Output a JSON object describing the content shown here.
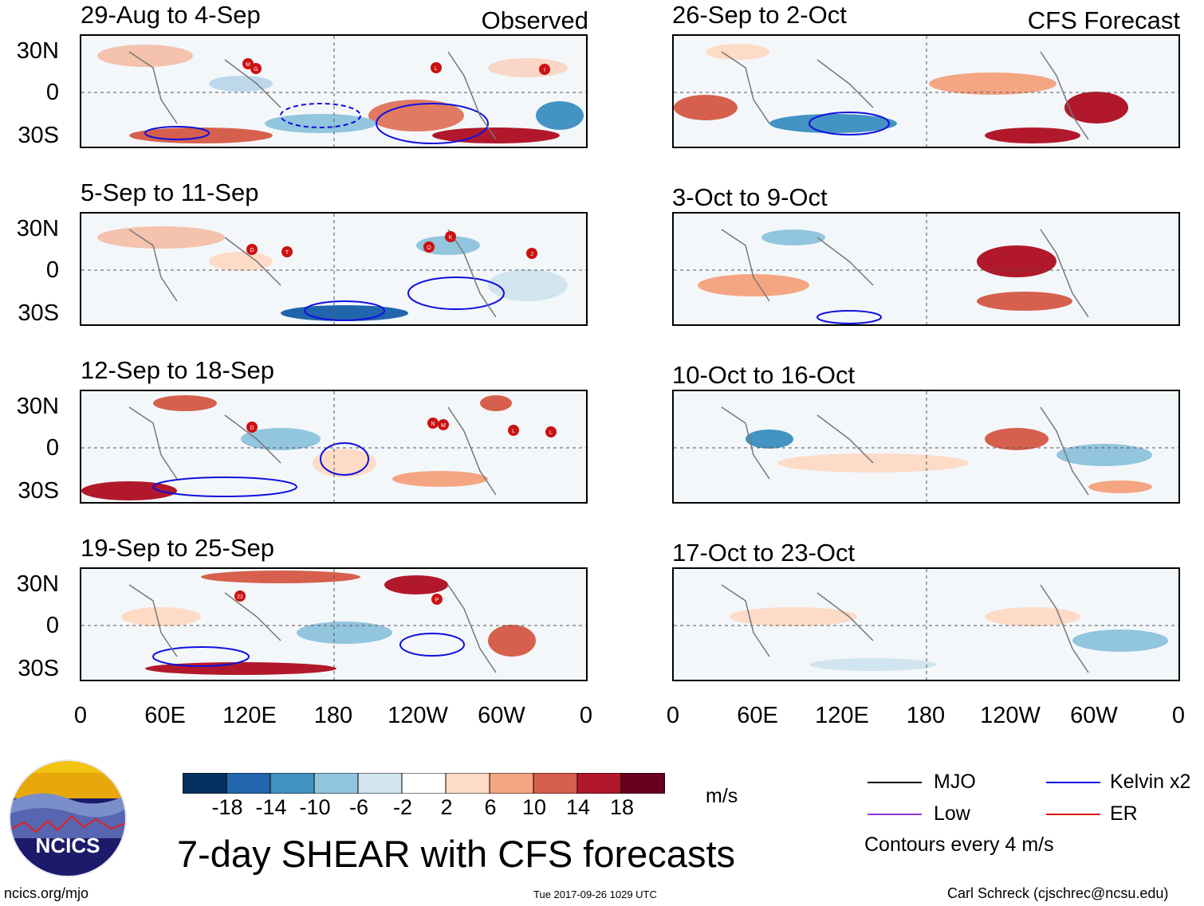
{
  "columns": {
    "observed": {
      "label": "Observed"
    },
    "forecast": {
      "label": "CFS Forecast"
    }
  },
  "panels": {
    "left": [
      {
        "title": "29-Aug to 4-Sep",
        "storms": [
          "M",
          "G",
          "L",
          "I"
        ]
      },
      {
        "title": "5-Sep to 11-Sep",
        "storms": [
          "D",
          "T",
          "O",
          "K",
          "J"
        ]
      },
      {
        "title": "12-Sep to 18-Sep",
        "storms": [
          "D",
          "N",
          "M",
          "L",
          "L"
        ]
      },
      {
        "title": "19-Sep to 25-Sep",
        "storms": [
          "22",
          "P"
        ]
      }
    ],
    "right": [
      {
        "title": "26-Sep to 2-Oct"
      },
      {
        "title": "3-Oct to 9-Oct"
      },
      {
        "title": "10-Oct to 16-Oct"
      },
      {
        "title": "17-Oct to 23-Oct"
      }
    ]
  },
  "lat_labels": [
    "30N",
    "0",
    "30S"
  ],
  "lon_labels": [
    "0",
    "60E",
    "120E",
    "180",
    "120W",
    "60W",
    "0"
  ],
  "colorbar": {
    "ticks": [
      "-18",
      "-14",
      "-10",
      "-6",
      "-2",
      "2",
      "6",
      "10",
      "14",
      "18"
    ],
    "colors": [
      "#053061",
      "#2166ac",
      "#4393c3",
      "#92c5de",
      "#d1e5f0",
      "#ffffff",
      "#fddbc7",
      "#f4a582",
      "#d6604d",
      "#b2182b",
      "#67001f"
    ],
    "units": "m/s"
  },
  "legend": {
    "items": [
      {
        "label": "MJO",
        "color": "#000000"
      },
      {
        "label": "Kelvin x2",
        "color": "#1010e0"
      },
      {
        "label": "Low",
        "color": "#9b30d9"
      },
      {
        "label": "ER",
        "color": "#e01010"
      }
    ],
    "note": "Contours every 4 m/s"
  },
  "logo": {
    "text": "NCICS"
  },
  "title": "7-day SHEAR with CFS forecasts",
  "footer": {
    "url": "ncics.org/mjo",
    "timestamp": "Tue 2017-09-26 1029 UTC",
    "author": "Carl Schreck (cjschrec@ncsu.edu)"
  }
}
